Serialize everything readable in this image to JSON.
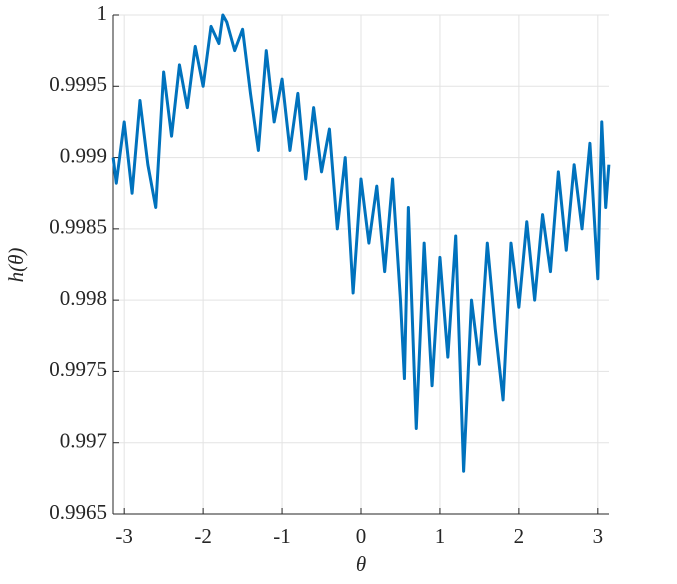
{
  "chart_data": {
    "type": "line",
    "xlabel": "θ",
    "ylabel": "h(θ)",
    "x": [
      -3.14,
      -3.1,
      -3.0,
      -2.9,
      -2.8,
      -2.7,
      -2.6,
      -2.5,
      -2.4,
      -2.3,
      -2.2,
      -2.1,
      -2.0,
      -1.9,
      -1.8,
      -1.75,
      -1.7,
      -1.6,
      -1.5,
      -1.4,
      -1.3,
      -1.2,
      -1.1,
      -1.0,
      -0.9,
      -0.8,
      -0.7,
      -0.6,
      -0.5,
      -0.4,
      -0.3,
      -0.2,
      -0.1,
      0.0,
      0.1,
      0.2,
      0.3,
      0.4,
      0.5,
      0.55,
      0.6,
      0.7,
      0.8,
      0.9,
      1.0,
      1.1,
      1.2,
      1.3,
      1.4,
      1.5,
      1.6,
      1.7,
      1.8,
      1.9,
      2.0,
      2.1,
      2.2,
      2.3,
      2.4,
      2.5,
      2.6,
      2.7,
      2.8,
      2.9,
      3.0,
      3.05,
      3.1,
      3.14
    ],
    "series": [
      {
        "color": "#0072bd",
        "values": [
          0.999,
          0.99882,
          0.99925,
          0.99875,
          0.9994,
          0.99895,
          0.99865,
          0.9996,
          0.99915,
          0.99965,
          0.99935,
          0.99978,
          0.9995,
          0.99992,
          0.9998,
          1.0,
          0.99995,
          0.99975,
          0.9999,
          0.99945,
          0.99905,
          0.99975,
          0.99925,
          0.99955,
          0.99905,
          0.99945,
          0.99885,
          0.99935,
          0.9989,
          0.9992,
          0.9985,
          0.999,
          0.99805,
          0.99885,
          0.9984,
          0.9988,
          0.9982,
          0.99885,
          0.998,
          0.99745,
          0.99865,
          0.9971,
          0.9984,
          0.9974,
          0.9983,
          0.9976,
          0.99845,
          0.9968,
          0.998,
          0.99755,
          0.9984,
          0.9978,
          0.9973,
          0.9984,
          0.99795,
          0.99855,
          0.998,
          0.9986,
          0.9982,
          0.9989,
          0.99835,
          0.99895,
          0.9985,
          0.9991,
          0.99815,
          0.99925,
          0.99865,
          0.99895
        ]
      }
    ],
    "xlim": [
      -3.14159,
      3.14159
    ],
    "xticks": [
      -3,
      -2,
      -1,
      0,
      1,
      2,
      3
    ],
    "ylim": [
      0.9965,
      1
    ],
    "yticks": [
      0.9965,
      0.997,
      0.9975,
      0.998,
      0.9985,
      0.999,
      0.9995,
      1
    ],
    "grid": true
  }
}
